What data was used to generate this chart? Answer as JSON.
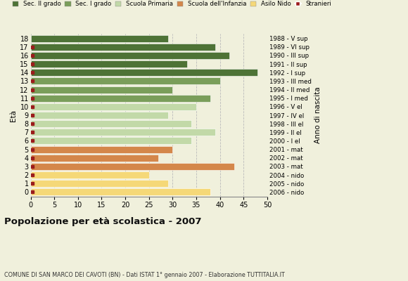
{
  "ages": [
    18,
    17,
    16,
    15,
    14,
    13,
    12,
    11,
    10,
    9,
    8,
    7,
    6,
    5,
    4,
    3,
    2,
    1,
    0
  ],
  "years": [
    "1988 - V sup",
    "1989 - VI sup",
    "1990 - III sup",
    "1991 - II sup",
    "1992 - I sup",
    "1993 - III med",
    "1994 - II med",
    "1995 - I med",
    "1996 - V el",
    "1997 - IV el",
    "1998 - III el",
    "1999 - II el",
    "2000 - I el",
    "2001 - mat",
    "2002 - mat",
    "2003 - mat",
    "2004 - nido",
    "2005 - nido",
    "2006 - nido"
  ],
  "values": [
    29,
    39,
    42,
    33,
    48,
    40,
    30,
    38,
    35,
    29,
    34,
    39,
    34,
    30,
    27,
    43,
    25,
    29,
    38
  ],
  "stranieri": [
    0,
    1,
    2,
    1,
    1,
    1,
    2,
    3,
    1,
    1,
    2,
    2,
    1,
    1,
    1,
    1,
    1,
    1,
    1
  ],
  "categories": [
    "Sec. II grado",
    "Sec. I grado",
    "Scuola Primaria",
    "Scuola dell'Infanzia",
    "Asilo Nido"
  ],
  "bar_colors": {
    "Sec. II grado": "#4e7336",
    "Sec. I grado": "#7a9e5a",
    "Scuola Primaria": "#c2d9a8",
    "Scuola dell'Infanzia": "#d4874a",
    "Asilo Nido": "#f5d878"
  },
  "stranieri_color": "#9b1c1c",
  "age_category": {
    "18": "Sec. II grado",
    "17": "Sec. II grado",
    "16": "Sec. II grado",
    "15": "Sec. II grado",
    "14": "Sec. II grado",
    "13": "Sec. I grado",
    "12": "Sec. I grado",
    "11": "Sec. I grado",
    "10": "Scuola Primaria",
    "9": "Scuola Primaria",
    "8": "Scuola Primaria",
    "7": "Scuola Primaria",
    "6": "Scuola Primaria",
    "5": "Scuola dell'Infanzia",
    "4": "Scuola dell'Infanzia",
    "3": "Scuola dell'Infanzia",
    "2": "Asilo Nido",
    "1": "Asilo Nido",
    "0": "Asilo Nido"
  },
  "title": "Popolazione per età scolastica - 2007",
  "subtitle": "COMUNE DI SAN MARCO DEI CAVOTI (BN) - Dati ISTAT 1° gennaio 2007 - Elaborazione TUTTITALIA.IT",
  "xlabel_eta": "Età",
  "xlabel_anno": "Anno di nascita",
  "xlim": [
    0,
    50
  ],
  "xticks": [
    0,
    5,
    10,
    15,
    20,
    25,
    30,
    35,
    40,
    45,
    50
  ],
  "background_color": "#f0f0dc",
  "grid_color": "#bbbbbb"
}
